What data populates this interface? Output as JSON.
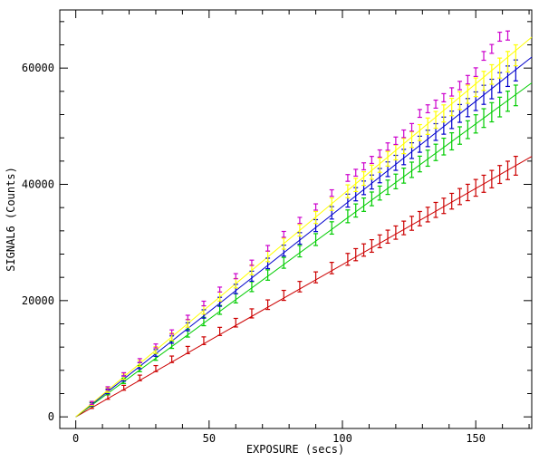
{
  "chart_data": {
    "type": "scatter",
    "title": "",
    "xlabel": "EXPOSURE (secs)",
    "ylabel": "SIGNAL6 (Counts)",
    "xlim": [
      -6,
      171
    ],
    "ylim": [
      -2000,
      70000
    ],
    "xticks": [
      0,
      50,
      100,
      150
    ],
    "yticks": [
      0,
      20000,
      40000,
      60000
    ],
    "grid": false,
    "legend": "none",
    "error_bars": true,
    "x": [
      6,
      12,
      18,
      24,
      30,
      36,
      42,
      48,
      54,
      60,
      66,
      72,
      78,
      84,
      90,
      96,
      102,
      105,
      108,
      111,
      114,
      117,
      120,
      123,
      126,
      129,
      132,
      135,
      138,
      141,
      144,
      147,
      150,
      153,
      156,
      159,
      162,
      165
    ],
    "series": [
      {
        "color": "#cc0000",
        "fit_slope": 262,
        "values": [
          1750,
          3400,
          5000,
          6700,
          8300,
          9900,
          11500,
          13100,
          14700,
          16200,
          17800,
          19300,
          20900,
          22400,
          24000,
          25600,
          27100,
          27900,
          28700,
          29400,
          30200,
          31000,
          31700,
          32500,
          33300,
          34100,
          34800,
          35600,
          36300,
          37100,
          37900,
          38600,
          39400,
          40100,
          40900,
          41700,
          42400,
          43200
        ],
        "errors": [
          300,
          380,
          420,
          480,
          520,
          560,
          620,
          660,
          700,
          740,
          780,
          820,
          860,
          900,
          940,
          980,
          1020,
          1040,
          1060,
          1080,
          1100,
          1120,
          1140,
          1170,
          1200,
          1230,
          1260,
          1290,
          1320,
          1350,
          1380,
          1410,
          1440,
          1470,
          1500,
          1540,
          1580,
          1620
        ]
      },
      {
        "color": "#00cc00",
        "fit_slope": 336,
        "values": [
          2100,
          4200,
          6200,
          8300,
          10300,
          12400,
          14400,
          16400,
          18400,
          20400,
          22400,
          24400,
          26500,
          28500,
          30500,
          32500,
          34500,
          35500,
          36500,
          37500,
          38500,
          39500,
          40500,
          41500,
          42500,
          43500,
          44500,
          45500,
          46500,
          47400,
          48400,
          49400,
          50400,
          51400,
          52400,
          53300,
          54300,
          55300
        ],
        "errors": [
          320,
          400,
          460,
          520,
          570,
          620,
          670,
          720,
          760,
          800,
          850,
          890,
          930,
          980,
          1020,
          1060,
          1100,
          1130,
          1150,
          1180,
          1200,
          1230,
          1260,
          1290,
          1320,
          1350,
          1380,
          1410,
          1440,
          1470,
          1500,
          1530,
          1570,
          1610,
          1650,
          1690,
          1730,
          1770
        ]
      },
      {
        "color": "#0000cc",
        "fit_slope": 362,
        "values": [
          2200,
          4400,
          6600,
          8800,
          11000,
          13300,
          15500,
          17700,
          19800,
          22000,
          24200,
          26400,
          28600,
          30700,
          32900,
          35100,
          37200,
          38300,
          39400,
          40400,
          41500,
          42600,
          43700,
          44700,
          45800,
          46900,
          47900,
          49000,
          50100,
          51100,
          52200,
          53200,
          54300,
          55400,
          56400,
          57500,
          58600,
          59600
        ],
        "errors": [
          320,
          400,
          460,
          520,
          580,
          630,
          680,
          720,
          770,
          810,
          860,
          900,
          940,
          990,
          1030,
          1070,
          1110,
          1140,
          1170,
          1200,
          1230,
          1260,
          1290,
          1320,
          1350,
          1380,
          1410,
          1440,
          1470,
          1500,
          1530,
          1560,
          1600,
          1640,
          1680,
          1720,
          1760,
          1800
        ]
      },
      {
        "color": "#ffff00",
        "fit_slope": 382,
        "values": [
          2300,
          4600,
          6900,
          9200,
          11500,
          13800,
          16100,
          18400,
          20700,
          23000,
          25300,
          27600,
          29800,
          32100,
          34300,
          36600,
          38800,
          39900,
          41000,
          42100,
          43300,
          44400,
          45500,
          46600,
          47700,
          48900,
          50000,
          51100,
          52200,
          53300,
          54400,
          55500,
          56700,
          57800,
          58900,
          60000,
          61100,
          62200
        ],
        "errors": [
          320,
          400,
          460,
          520,
          580,
          630,
          680,
          720,
          770,
          810,
          860,
          900,
          940,
          990,
          1030,
          1070,
          1110,
          1140,
          1170,
          1200,
          1230,
          1260,
          1290,
          1320,
          1350,
          1380,
          1410,
          1440,
          1470,
          1500,
          1530,
          1560,
          1600,
          1640,
          1680,
          1720,
          1760,
          1800
        ]
      },
      {
        "color": "#cc00cc",
        "values": [
          2400,
          4900,
          7300,
          9700,
          12200,
          14600,
          17100,
          19500,
          21900,
          24200,
          26500,
          29000,
          31400,
          33800,
          36100,
          38500,
          41100,
          42000,
          43100,
          44200,
          45300,
          46500,
          47500,
          48700,
          49800,
          52200,
          53000,
          53800,
          54900,
          55900,
          57000,
          58000,
          59300,
          62100,
          63300,
          65400,
          65600,
          null
        ],
        "errors": [
          260,
          280,
          300,
          320,
          340,
          360,
          380,
          400,
          420,
          440,
          460,
          480,
          500,
          520,
          540,
          560,
          580,
          590,
          600,
          610,
          620,
          630,
          640,
          650,
          660,
          670,
          680,
          690,
          700,
          710,
          720,
          730,
          740,
          750,
          760,
          770,
          780,
          null
        ]
      }
    ]
  }
}
